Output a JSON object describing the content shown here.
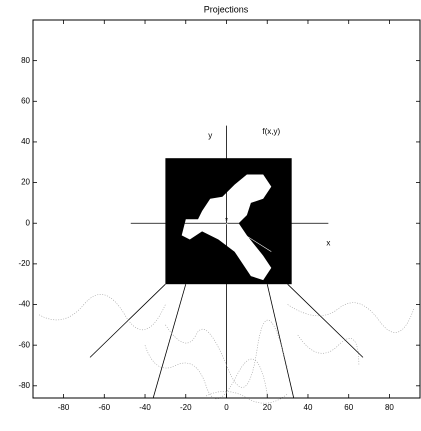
{
  "chart_data": {
    "type": "diagram",
    "title": "Projections",
    "xlim": [
      -95,
      95
    ],
    "ylim": [
      -86,
      100
    ],
    "xticks": [
      -80,
      -60,
      -40,
      -20,
      0,
      20,
      40,
      60,
      80
    ],
    "yticks": [
      -80,
      -60,
      -40,
      -20,
      0,
      20,
      40,
      60,
      80
    ],
    "annotations": [
      "y",
      "f(x,y)",
      "x"
    ]
  }
}
